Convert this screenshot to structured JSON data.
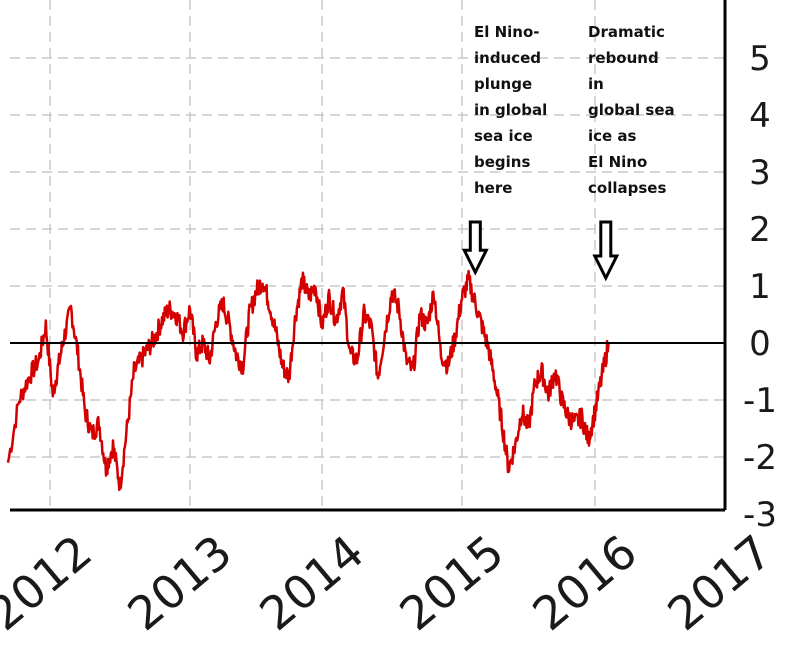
{
  "chart_data": {
    "type": "line",
    "title": "",
    "xlabel": "",
    "ylabel": "",
    "x_tick_labels": [
      "2012",
      "2013",
      "2014",
      "2015",
      "2016",
      "2017"
    ],
    "y_tick_labels": [
      "-3",
      "-2",
      "-1",
      "0",
      "1",
      "2",
      "3",
      "4",
      "5"
    ],
    "ylim": [
      -3,
      6
    ],
    "xlim": [
      2011.7,
      2016.9
    ],
    "grid": true,
    "reference_line": 0,
    "colors": {
      "series": "#d40000",
      "axis": "#000000",
      "grid": "#c8c8c8"
    },
    "series": [
      {
        "x": [
          2011.7,
          2011.78,
          2011.85,
          2011.92,
          2011.97,
          2012.02,
          2012.06,
          2012.1,
          2012.15,
          2012.2,
          2012.25,
          2012.3,
          2012.35,
          2012.4,
          2012.45,
          2012.5,
          2012.55,
          2012.6,
          2012.65,
          2012.7,
          2012.75,
          2012.8,
          2012.85,
          2012.9,
          2012.95,
          2013.0,
          2013.05,
          2013.1,
          2013.15,
          2013.2,
          2013.25,
          2013.3,
          2013.35,
          2013.4,
          2013.45,
          2013.5,
          2013.55,
          2013.6,
          2013.65,
          2013.7,
          2013.75,
          2013.8,
          2013.85,
          2013.9,
          2013.95,
          2014.0,
          2014.05,
          2014.1,
          2014.15,
          2014.2,
          2014.25,
          2014.3,
          2014.35,
          2014.4,
          2014.45,
          2014.5,
          2014.55,
          2014.6,
          2014.65,
          2014.7,
          2014.75,
          2014.8,
          2014.85,
          2014.9,
          2014.95,
          2015.0,
          2015.05,
          2015.1,
          2015.15,
          2015.2,
          2015.25,
          2015.3,
          2015.35,
          2015.4,
          2015.45,
          2015.5,
          2015.55,
          2015.6,
          2015.65,
          2015.7,
          2015.75,
          2015.8,
          2015.85,
          2015.9,
          2015.95,
          2016.0,
          2016.05,
          2016.1
        ],
        "y": [
          -2.1,
          -1.0,
          -0.6,
          -0.3,
          0.3,
          -0.9,
          -0.4,
          0.1,
          0.6,
          -0.2,
          -1.2,
          -1.6,
          -1.4,
          -2.2,
          -1.8,
          -2.5,
          -1.5,
          -0.5,
          -0.3,
          -0.1,
          0.1,
          0.4,
          0.6,
          0.5,
          0.2,
          0.6,
          -0.2,
          0.0,
          -0.3,
          0.4,
          0.7,
          0.3,
          -0.2,
          -0.4,
          0.5,
          0.9,
          1.1,
          0.7,
          0.2,
          -0.4,
          -0.6,
          0.5,
          1.1,
          0.8,
          1.0,
          0.3,
          0.8,
          0.4,
          0.9,
          -0.2,
          -0.3,
          0.5,
          0.3,
          -0.6,
          0.2,
          0.9,
          0.6,
          -0.3,
          -0.5,
          0.5,
          0.3,
          0.9,
          -0.2,
          -0.4,
          0.1,
          0.8,
          1.1,
          0.7,
          0.3,
          -0.1,
          -0.7,
          -1.4,
          -2.2,
          -1.8,
          -1.2,
          -1.5,
          -0.7,
          -0.5,
          -0.9,
          -0.5,
          -1.0,
          -1.3,
          -1.4,
          -1.3,
          -1.7,
          -1.2,
          -0.6,
          0.0
        ]
      }
    ],
    "annotations": [
      {
        "lines": [
          "El Nino-",
          "induced",
          "plunge",
          "in global",
          "sea ice",
          "begins",
          "here"
        ],
        "arrow": "down",
        "x": 2015.1,
        "y": 1.1
      },
      {
        "lines": [
          "Dramatic",
          "rebound",
          "in",
          "global sea",
          "ice as",
          "El Nino",
          "collapses"
        ],
        "arrow": "down",
        "x": 2016.08,
        "y": 1.0
      }
    ]
  }
}
